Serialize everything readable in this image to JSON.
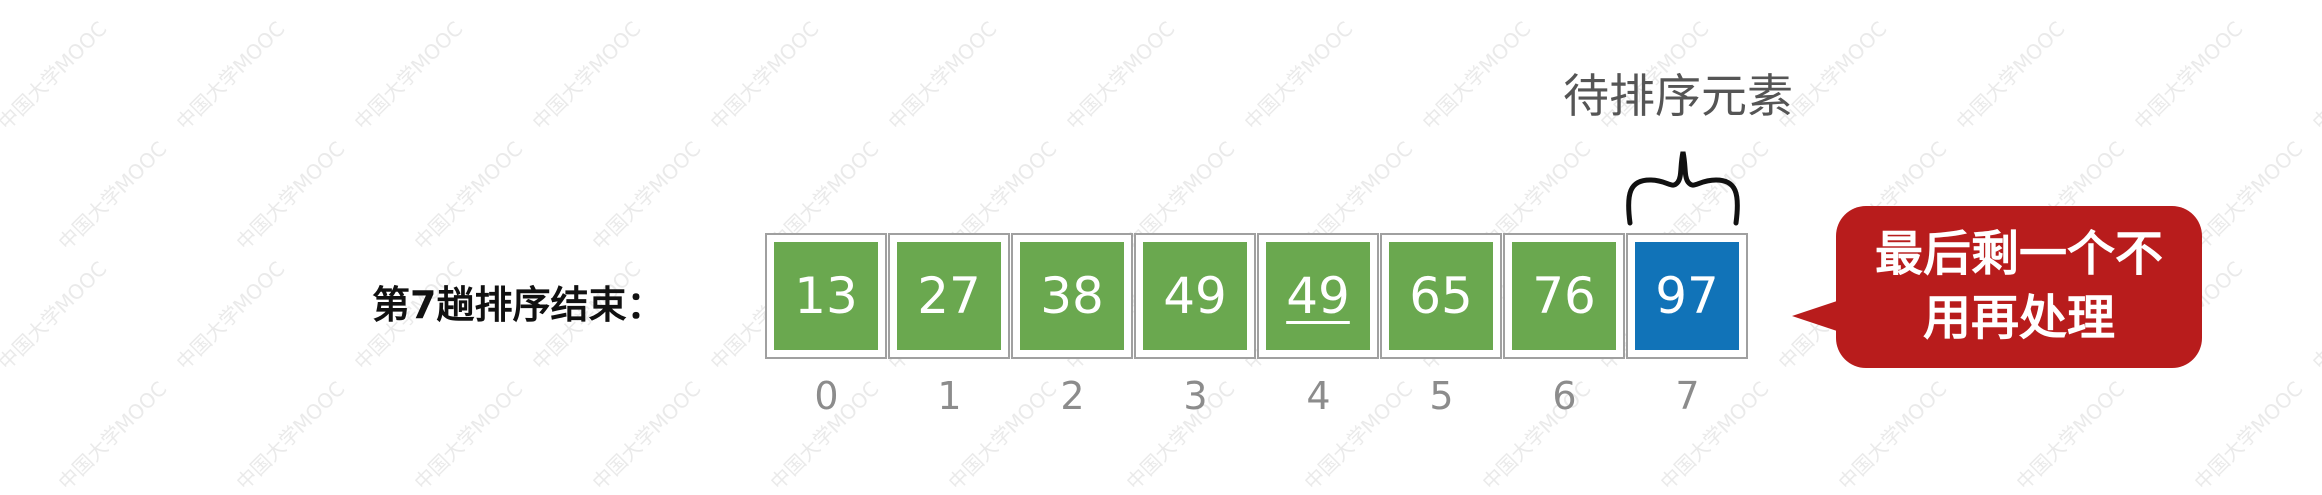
{
  "pass_label": "第7趟排序结束：",
  "pending_label": "待排序元素",
  "colors": {
    "sorted": "#6aa84f",
    "pending": "#1173b8",
    "callout": "#b81c1c"
  },
  "cells": [
    {
      "value": "13",
      "state": "sorted"
    },
    {
      "value": "27",
      "state": "sorted"
    },
    {
      "value": "38",
      "state": "sorted"
    },
    {
      "value": "49",
      "state": "sorted"
    },
    {
      "value": "49",
      "state": "sorted",
      "underlined": true
    },
    {
      "value": "65",
      "state": "sorted"
    },
    {
      "value": "76",
      "state": "sorted"
    },
    {
      "value": "97",
      "state": "pending"
    }
  ],
  "indices": [
    "0",
    "1",
    "2",
    "3",
    "4",
    "5",
    "6",
    "7"
  ],
  "callout": {
    "line1": "最后剩一个不",
    "line2": "用再处理"
  },
  "watermark": "中国大学MOOC"
}
